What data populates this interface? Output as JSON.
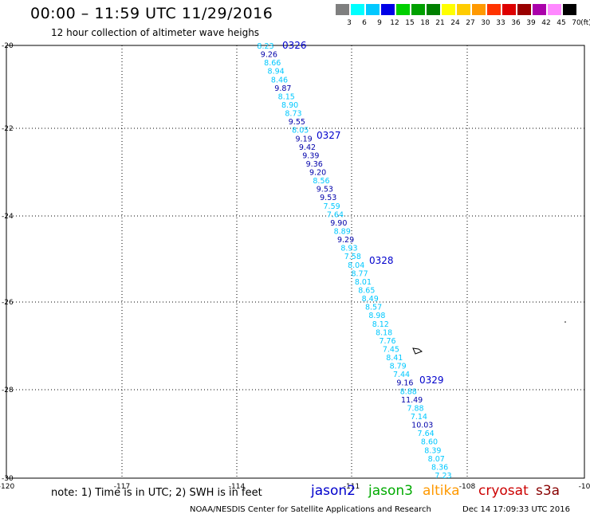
{
  "title": "00:00 – 11:59 UTC 11/29/2016",
  "subtitle": "12 hour collection of altimeter wave heighs",
  "legend": {
    "labels": [
      "3",
      "6",
      "9",
      "12",
      "15",
      "18",
      "21",
      "24",
      "27",
      "30",
      "33",
      "36",
      "39",
      "42",
      "45",
      "70"
    ],
    "unit": "(ft)",
    "colors": [
      "#7f7f7f",
      "#00ffff",
      "#00c8ff",
      "#0000e6",
      "#00d000",
      "#00a000",
      "#008000",
      "#ffff00",
      "#ffcc00",
      "#ff9900",
      "#ff3300",
      "#dd0000",
      "#990000",
      "#aa00aa",
      "#ff88ff",
      "#000000"
    ]
  },
  "axes": {
    "lon_labels": [
      "-120",
      "-117",
      "-114",
      "-111",
      "-108",
      "-10"
    ],
    "lat_labels": [
      "-20",
      "-22",
      "-24",
      "-26",
      "-28",
      "-30"
    ]
  },
  "track": {
    "points": [
      {
        "v": "8.23",
        "c": "#00c8ff"
      },
      {
        "v": "9.26",
        "c": "#0000aa"
      },
      {
        "v": "8.66",
        "c": "#00c8ff"
      },
      {
        "v": "8.94",
        "c": "#00c8ff"
      },
      {
        "v": "8.46",
        "c": "#00c8ff"
      },
      {
        "v": "9.87",
        "c": "#0000aa"
      },
      {
        "v": "8.15",
        "c": "#00c8ff"
      },
      {
        "v": "8.90",
        "c": "#00c8ff"
      },
      {
        "v": "8.73",
        "c": "#00c8ff"
      },
      {
        "v": "9.55",
        "c": "#0000aa"
      },
      {
        "v": "8.05",
        "c": "#00c8ff"
      },
      {
        "v": "9.19",
        "c": "#0000aa"
      },
      {
        "v": "9.42",
        "c": "#0000aa"
      },
      {
        "v": "9.39",
        "c": "#0000aa"
      },
      {
        "v": "9.36",
        "c": "#0000aa"
      },
      {
        "v": "9.20",
        "c": "#0000aa"
      },
      {
        "v": "8.56",
        "c": "#00c8ff"
      },
      {
        "v": "9.53",
        "c": "#0000aa"
      },
      {
        "v": "9.53",
        "c": "#0000aa"
      },
      {
        "v": "7.59",
        "c": "#00c8ff"
      },
      {
        "v": "7.64",
        "c": "#00c8ff"
      },
      {
        "v": "9.90",
        "c": "#0000aa"
      },
      {
        "v": "8.89",
        "c": "#00c8ff"
      },
      {
        "v": "9.29",
        "c": "#0000aa"
      },
      {
        "v": "8.93",
        "c": "#00c8ff"
      },
      {
        "v": "7.58",
        "c": "#00c8ff"
      },
      {
        "v": "8.04",
        "c": "#00c8ff"
      },
      {
        "v": "8.77",
        "c": "#00c8ff"
      },
      {
        "v": "8.01",
        "c": "#00c8ff"
      },
      {
        "v": "8.65",
        "c": "#00c8ff"
      },
      {
        "v": "8.49",
        "c": "#00c8ff"
      },
      {
        "v": "8.57",
        "c": "#00c8ff"
      },
      {
        "v": "8.98",
        "c": "#00c8ff"
      },
      {
        "v": "8.12",
        "c": "#00c8ff"
      },
      {
        "v": "8.18",
        "c": "#00c8ff"
      },
      {
        "v": "7.76",
        "c": "#00c8ff"
      },
      {
        "v": "7.45",
        "c": "#00c8ff"
      },
      {
        "v": "8.41",
        "c": "#00c8ff"
      },
      {
        "v": "8.79",
        "c": "#00c8ff"
      },
      {
        "v": "7.44",
        "c": "#00c8ff"
      },
      {
        "v": "9.16",
        "c": "#0000aa"
      },
      {
        "v": "8.88",
        "c": "#00c8ff"
      },
      {
        "v": "11.49",
        "c": "#0000aa"
      },
      {
        "v": "7.88",
        "c": "#00c8ff"
      },
      {
        "v": "7.14",
        "c": "#00c8ff"
      },
      {
        "v": "10.03",
        "c": "#0000aa"
      },
      {
        "v": "7.64",
        "c": "#00c8ff"
      },
      {
        "v": "8.60",
        "c": "#00c8ff"
      },
      {
        "v": "8.39",
        "c": "#00c8ff"
      },
      {
        "v": "8.07",
        "c": "#00c8ff"
      },
      {
        "v": "8.36",
        "c": "#00c8ff"
      },
      {
        "v": "7.23",
        "c": "#00c8ff"
      }
    ],
    "times": [
      "0326",
      "0327",
      "0328",
      "0329"
    ]
  },
  "note": "note: 1) Time is in UTC; 2) SWH is in feet",
  "satellites": [
    {
      "name": "jason2",
      "color": "#0000cc"
    },
    {
      "name": "jason3",
      "color": "#00aa00"
    },
    {
      "name": "altika",
      "color": "#ff9900"
    },
    {
      "name": "cryosat",
      "color": "#cc0000"
    },
    {
      "name": "s3a",
      "color": "#880000"
    }
  ],
  "credit": "NOAA/NESDIS Center for Satellite Applications and Research",
  "timestamp": "Dec 14 17:09:33 UTC 2016"
}
